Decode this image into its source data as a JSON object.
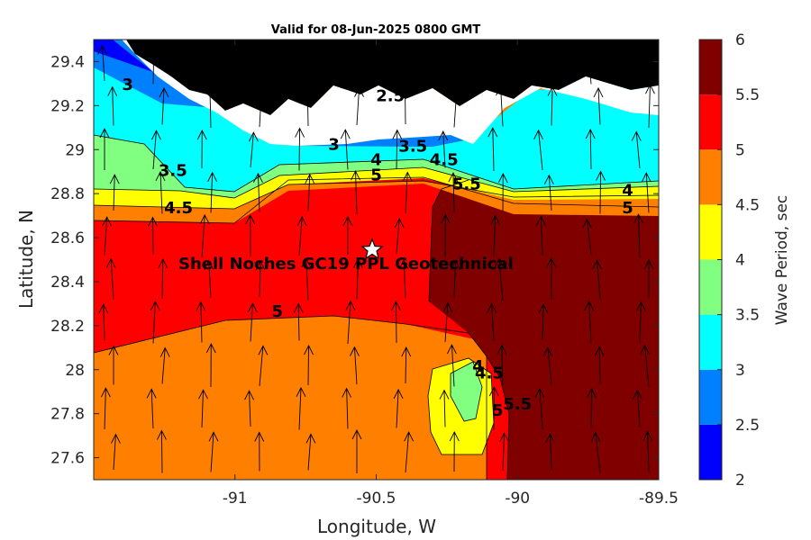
{
  "title": "Valid for 08-Jun-2025 0800 GMT",
  "site_label": "Shell Noches   GC19 PPL  Geotechnical",
  "chart_data": {
    "type": "filled-contour",
    "title": "Valid for 08-Jun-2025 0800 GMT",
    "xlabel": "Longitude, W",
    "ylabel": "Latitude, N",
    "colorbar_label": "Wave Period, sec",
    "xlim": [
      -91.5,
      -89.5
    ],
    "ylim": [
      27.5,
      29.5
    ],
    "x_ticks": [
      -91,
      -90.5,
      -90,
      -89.5
    ],
    "y_ticks": [
      27.6,
      27.8,
      28,
      28.2,
      28.4,
      28.6,
      28.8,
      29,
      29.2,
      29.4
    ],
    "colorbar_levels": [
      2,
      2.5,
      3,
      3.5,
      4,
      4.5,
      5,
      5.5,
      6
    ],
    "colorbar_colors": [
      "#0000ff",
      "#0080ff",
      "#00ffff",
      "#80ff80",
      "#ffff00",
      "#ff8000",
      "#ff0000",
      "#800000"
    ],
    "site_marker": {
      "lon": -90.5,
      "lat": 28.55
    },
    "contour_labels": [
      {
        "text": "3",
        "lon": -91.38,
        "lat": 29.27
      },
      {
        "text": "3.5",
        "lon": -91.22,
        "lat": 28.88
      },
      {
        "text": "4.5",
        "lon": -91.2,
        "lat": 28.71
      },
      {
        "text": "2.5",
        "lon": -90.45,
        "lat": 29.22
      },
      {
        "text": "3",
        "lon": -90.65,
        "lat": 29.0
      },
      {
        "text": "3.5",
        "lon": -90.37,
        "lat": 28.99
      },
      {
        "text": "4",
        "lon": -90.5,
        "lat": 28.93
      },
      {
        "text": "4.5",
        "lon": -90.26,
        "lat": 28.93
      },
      {
        "text": "5",
        "lon": -90.5,
        "lat": 28.86
      },
      {
        "text": "5.5",
        "lon": -90.18,
        "lat": 28.82
      },
      {
        "text": "4",
        "lon": -89.61,
        "lat": 28.79
      },
      {
        "text": "5",
        "lon": -89.61,
        "lat": 28.71
      },
      {
        "text": "5",
        "lon": -90.85,
        "lat": 28.24
      },
      {
        "text": "4",
        "lon": -90.14,
        "lat": 27.99
      },
      {
        "text": "4.5",
        "lon": -90.1,
        "lat": 27.96
      },
      {
        "text": "5",
        "lon": -90.07,
        "lat": 27.79
      },
      {
        "text": "5.5",
        "lon": -90.0,
        "lat": 27.82
      }
    ]
  }
}
